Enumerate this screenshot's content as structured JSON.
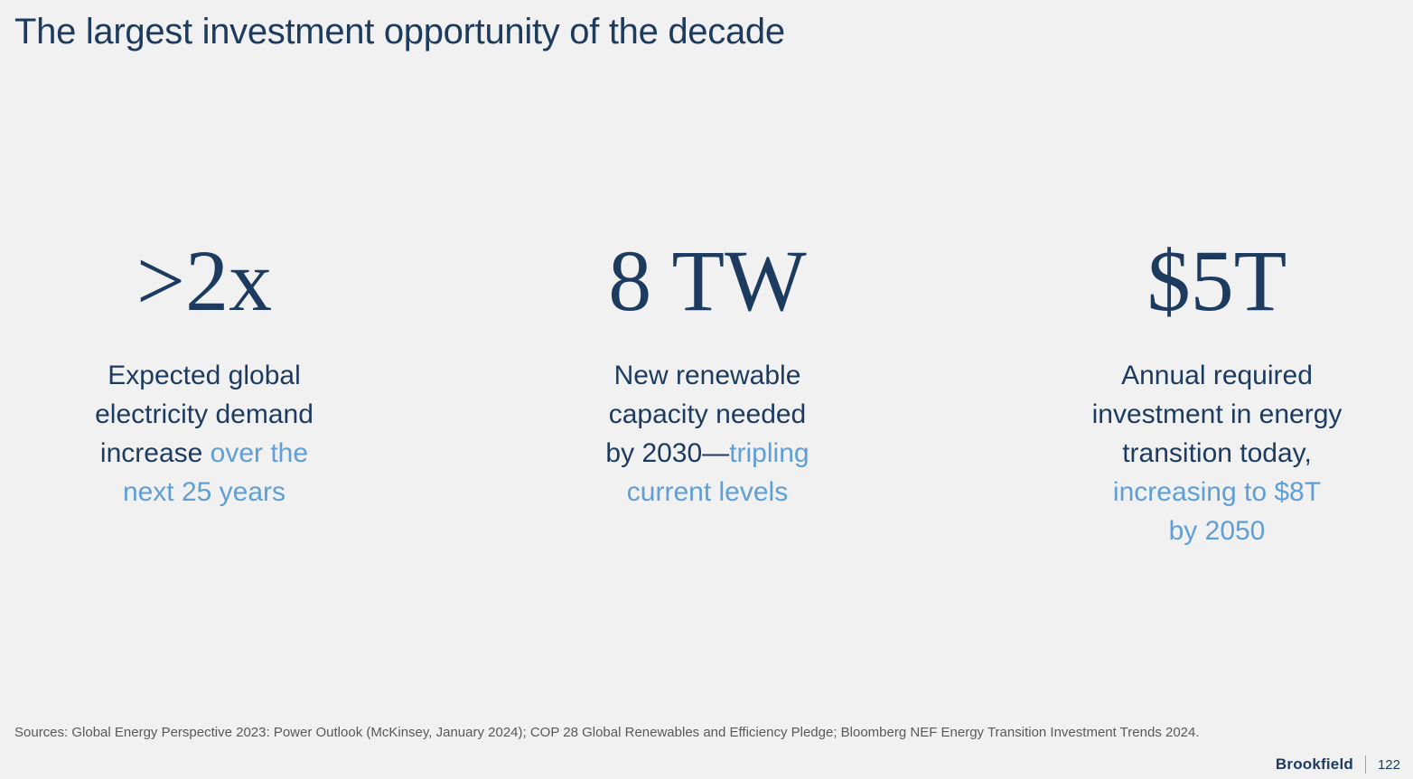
{
  "slide": {
    "title": "The largest investment opportunity of the decade",
    "background_color": "#f1f1f2",
    "colors": {
      "navy": "#1c3b5e",
      "accent_blue": "#5f9fd6",
      "sources_gray": "#595959"
    }
  },
  "columns": [
    {
      "stat": ">2x",
      "desc_lines": [
        [
          {
            "t": "Expected global",
            "c": "dark"
          }
        ],
        [
          {
            "t": "electricity demand",
            "c": "dark"
          }
        ],
        [
          {
            "t": "increase ",
            "c": "dark"
          },
          {
            "t": "over the",
            "c": "blue"
          }
        ],
        [
          {
            "t": "next 25 years",
            "c": "blue"
          }
        ]
      ]
    },
    {
      "stat": "8 TW",
      "desc_lines": [
        [
          {
            "t": "New renewable",
            "c": "dark"
          }
        ],
        [
          {
            "t": "capacity needed",
            "c": "dark"
          }
        ],
        [
          {
            "t": "by 2030—",
            "c": "dark"
          },
          {
            "t": "tripling",
            "c": "blue"
          }
        ],
        [
          {
            "t": "current levels",
            "c": "blue"
          }
        ]
      ]
    },
    {
      "stat": "$5T",
      "desc_lines": [
        [
          {
            "t": "Annual required",
            "c": "dark"
          }
        ],
        [
          {
            "t": "investment in energy",
            "c": "dark"
          }
        ],
        [
          {
            "t": "transition today,",
            "c": "dark"
          }
        ],
        [
          {
            "t": "increasing to $8T",
            "c": "blue"
          }
        ],
        [
          {
            "t": "by 2050",
            "c": "blue"
          }
        ]
      ]
    }
  ],
  "sources": "Sources: Global Energy Perspective 2023: Power Outlook (McKinsey, January 2024); COP 28 Global Renewables and Efficiency Pledge; Bloomberg NEF Energy Transition Investment Trends 2024.",
  "footer": {
    "brand": "Brookfield",
    "page": "122"
  }
}
